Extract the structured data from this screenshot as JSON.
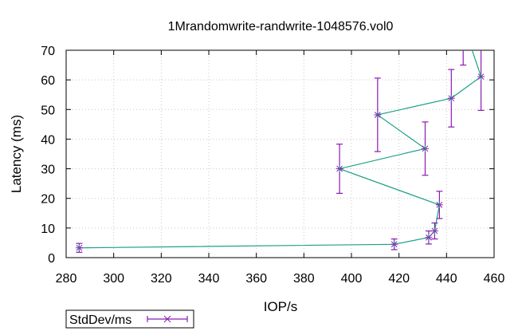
{
  "chart_data": {
    "type": "line",
    "title": "1Mrandomwrite-randwrite-1048576.vol0",
    "xlabel": "IOP/s",
    "ylabel": "Latency (ms)",
    "xlim": [
      280,
      460
    ],
    "ylim": [
      0,
      70
    ],
    "x_ticks": [
      "280",
      "300",
      "320",
      "340",
      "360",
      "380",
      "400",
      "420",
      "440",
      "460"
    ],
    "y_ticks": [
      "0",
      "10",
      "20",
      "30",
      "40",
      "50",
      "60",
      "70"
    ],
    "grid": true,
    "legend": {
      "position": "bottom-left",
      "entries": [
        "StdDev/ms"
      ]
    },
    "colors": {
      "line": "#1aa085",
      "errorbar": "#8a1bb0",
      "axis": "#000000",
      "grid": "#c8c8c8"
    },
    "series": [
      {
        "name": "StdDev/ms",
        "points": [
          {
            "x": 285.5,
            "y": 3.3,
            "err": 1.5
          },
          {
            "x": 418.0,
            "y": 4.5,
            "err": 1.8
          },
          {
            "x": 432.5,
            "y": 6.8,
            "err": 2.2
          },
          {
            "x": 435.0,
            "y": 9.0,
            "err": 2.7
          },
          {
            "x": 437.0,
            "y": 17.8,
            "err": 4.6
          },
          {
            "x": 395.0,
            "y": 30.0,
            "err": 8.3
          },
          {
            "x": 431.0,
            "y": 36.8,
            "err": 9.0
          },
          {
            "x": 411.0,
            "y": 48.2,
            "err": 12.4
          },
          {
            "x": 442.0,
            "y": 53.8,
            "err": 9.7
          },
          {
            "x": 454.5,
            "y": 61.1,
            "err": 11.4
          },
          {
            "x": 447.0,
            "y": 79.0,
            "err": 14.0
          }
        ]
      }
    ]
  }
}
